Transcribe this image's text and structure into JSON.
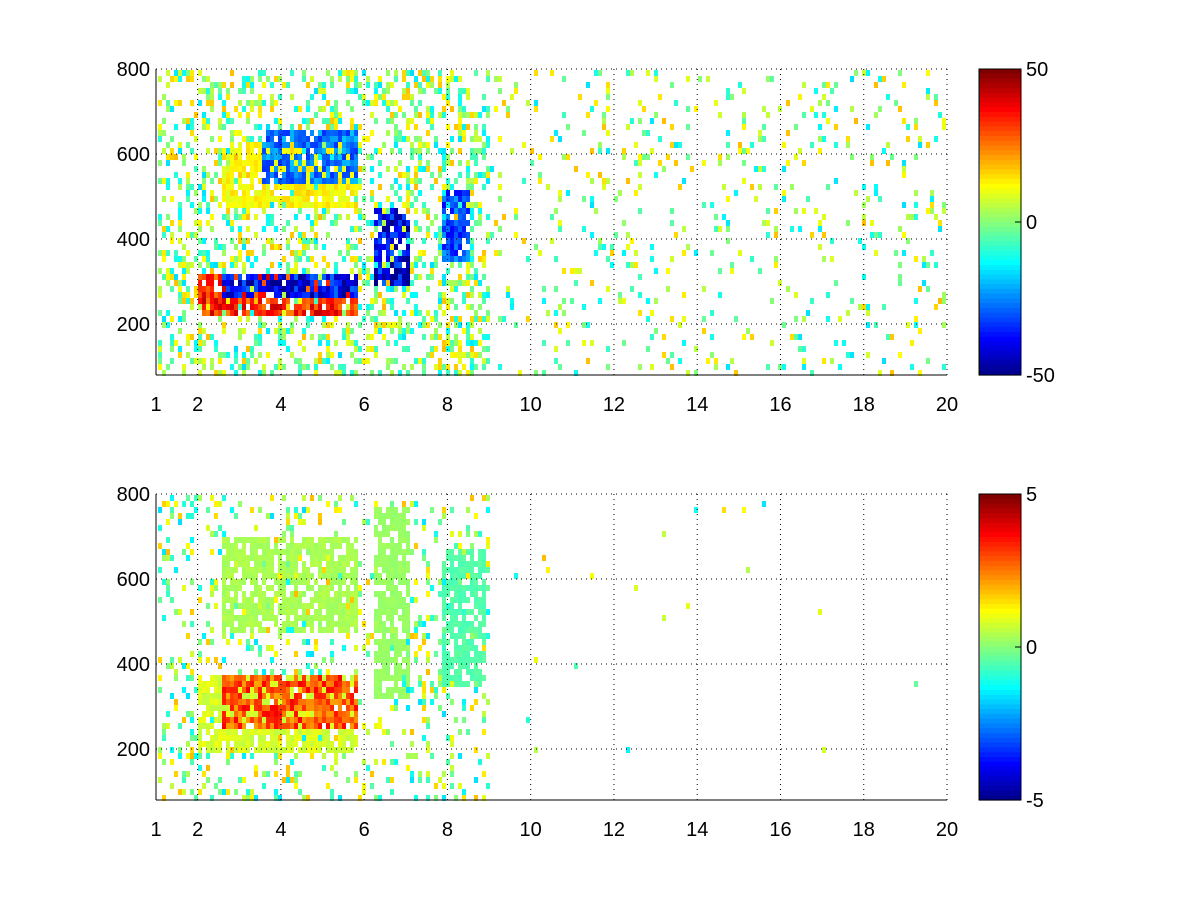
{
  "chart_data": [
    {
      "type": "heatmap",
      "title": "",
      "xlabel": "",
      "ylabel": "",
      "xlim": [
        1,
        20
      ],
      "ylim": [
        80,
        800
      ],
      "xticks": [
        1,
        2,
        4,
        6,
        8,
        10,
        12,
        14,
        16,
        18,
        20
      ],
      "xtick_labels": [
        "1",
        "2",
        "4",
        "6",
        "8",
        "10",
        "12",
        "14",
        "16",
        "18",
        "20"
      ],
      "yticks": [
        200,
        400,
        600,
        800
      ],
      "ytick_labels": [
        "200",
        "400",
        "600",
        "800"
      ],
      "grid": true,
      "colormap": "jet",
      "colorbar": {
        "min": -50,
        "max": 50,
        "ticks": [
          50,
          0,
          -50
        ],
        "tick_labels": [
          "50",
          "0",
          "-50"
        ]
      },
      "features": [
        {
          "name": "lower band",
          "x_start": 2.0,
          "x_end": 5.8,
          "y_start": 230,
          "y_end": 320,
          "value": 40
        },
        {
          "name": "lower band shadow",
          "x_start": 2.5,
          "x_end": 5.8,
          "y_start": 270,
          "y_end": 330,
          "value": -45
        },
        {
          "name": "upper band",
          "x_start": 2.5,
          "x_end": 5.8,
          "y_start": 480,
          "y_end": 640,
          "value": 15
        },
        {
          "name": "upper band shadow",
          "x_start": 3.5,
          "x_end": 5.8,
          "y_start": 530,
          "y_end": 660,
          "value": -30
        },
        {
          "name": "x6.5 feature",
          "x_start": 6.2,
          "x_end": 7.1,
          "y_start": 300,
          "y_end": 480,
          "value": -45
        },
        {
          "name": "x8 feature",
          "x_start": 7.8,
          "x_end": 8.5,
          "y_start": 350,
          "y_end": 520,
          "value": -35
        }
      ]
    },
    {
      "type": "heatmap",
      "title": "",
      "xlabel": "",
      "ylabel": "",
      "xlim": [
        1,
        20
      ],
      "ylim": [
        80,
        800
      ],
      "xticks": [
        1,
        2,
        4,
        6,
        8,
        10,
        12,
        14,
        16,
        18,
        20
      ],
      "xtick_labels": [
        "1",
        "2",
        "4",
        "6",
        "8",
        "10",
        "12",
        "14",
        "16",
        "18",
        "20"
      ],
      "yticks": [
        200,
        400,
        600,
        800
      ],
      "ytick_labels": [
        "200",
        "400",
        "600",
        "800"
      ],
      "grid": true,
      "colormap": "jet",
      "colorbar": {
        "min": -5,
        "max": 5,
        "ticks": [
          5,
          0,
          -5
        ],
        "tick_labels": [
          "5",
          "0",
          "-5"
        ]
      },
      "features": [
        {
          "name": "lower band",
          "x_start": 2.0,
          "x_end": 5.8,
          "y_start": 200,
          "y_end": 380,
          "value": 1
        },
        {
          "name": "lower band peak",
          "x_start": 2.5,
          "x_end": 5.8,
          "y_start": 260,
          "y_end": 380,
          "value": 3.5
        },
        {
          "name": "upper band",
          "x_start": 2.5,
          "x_end": 5.8,
          "y_start": 480,
          "y_end": 700,
          "value": 0.5
        },
        {
          "name": "x6.5 feature",
          "x_start": 6.2,
          "x_end": 7.1,
          "y_start": 320,
          "y_end": 780,
          "value": 0.3
        },
        {
          "name": "x8 feature",
          "x_start": 7.8,
          "x_end": 8.9,
          "y_start": 360,
          "y_end": 680,
          "value": -0.5
        }
      ]
    }
  ]
}
